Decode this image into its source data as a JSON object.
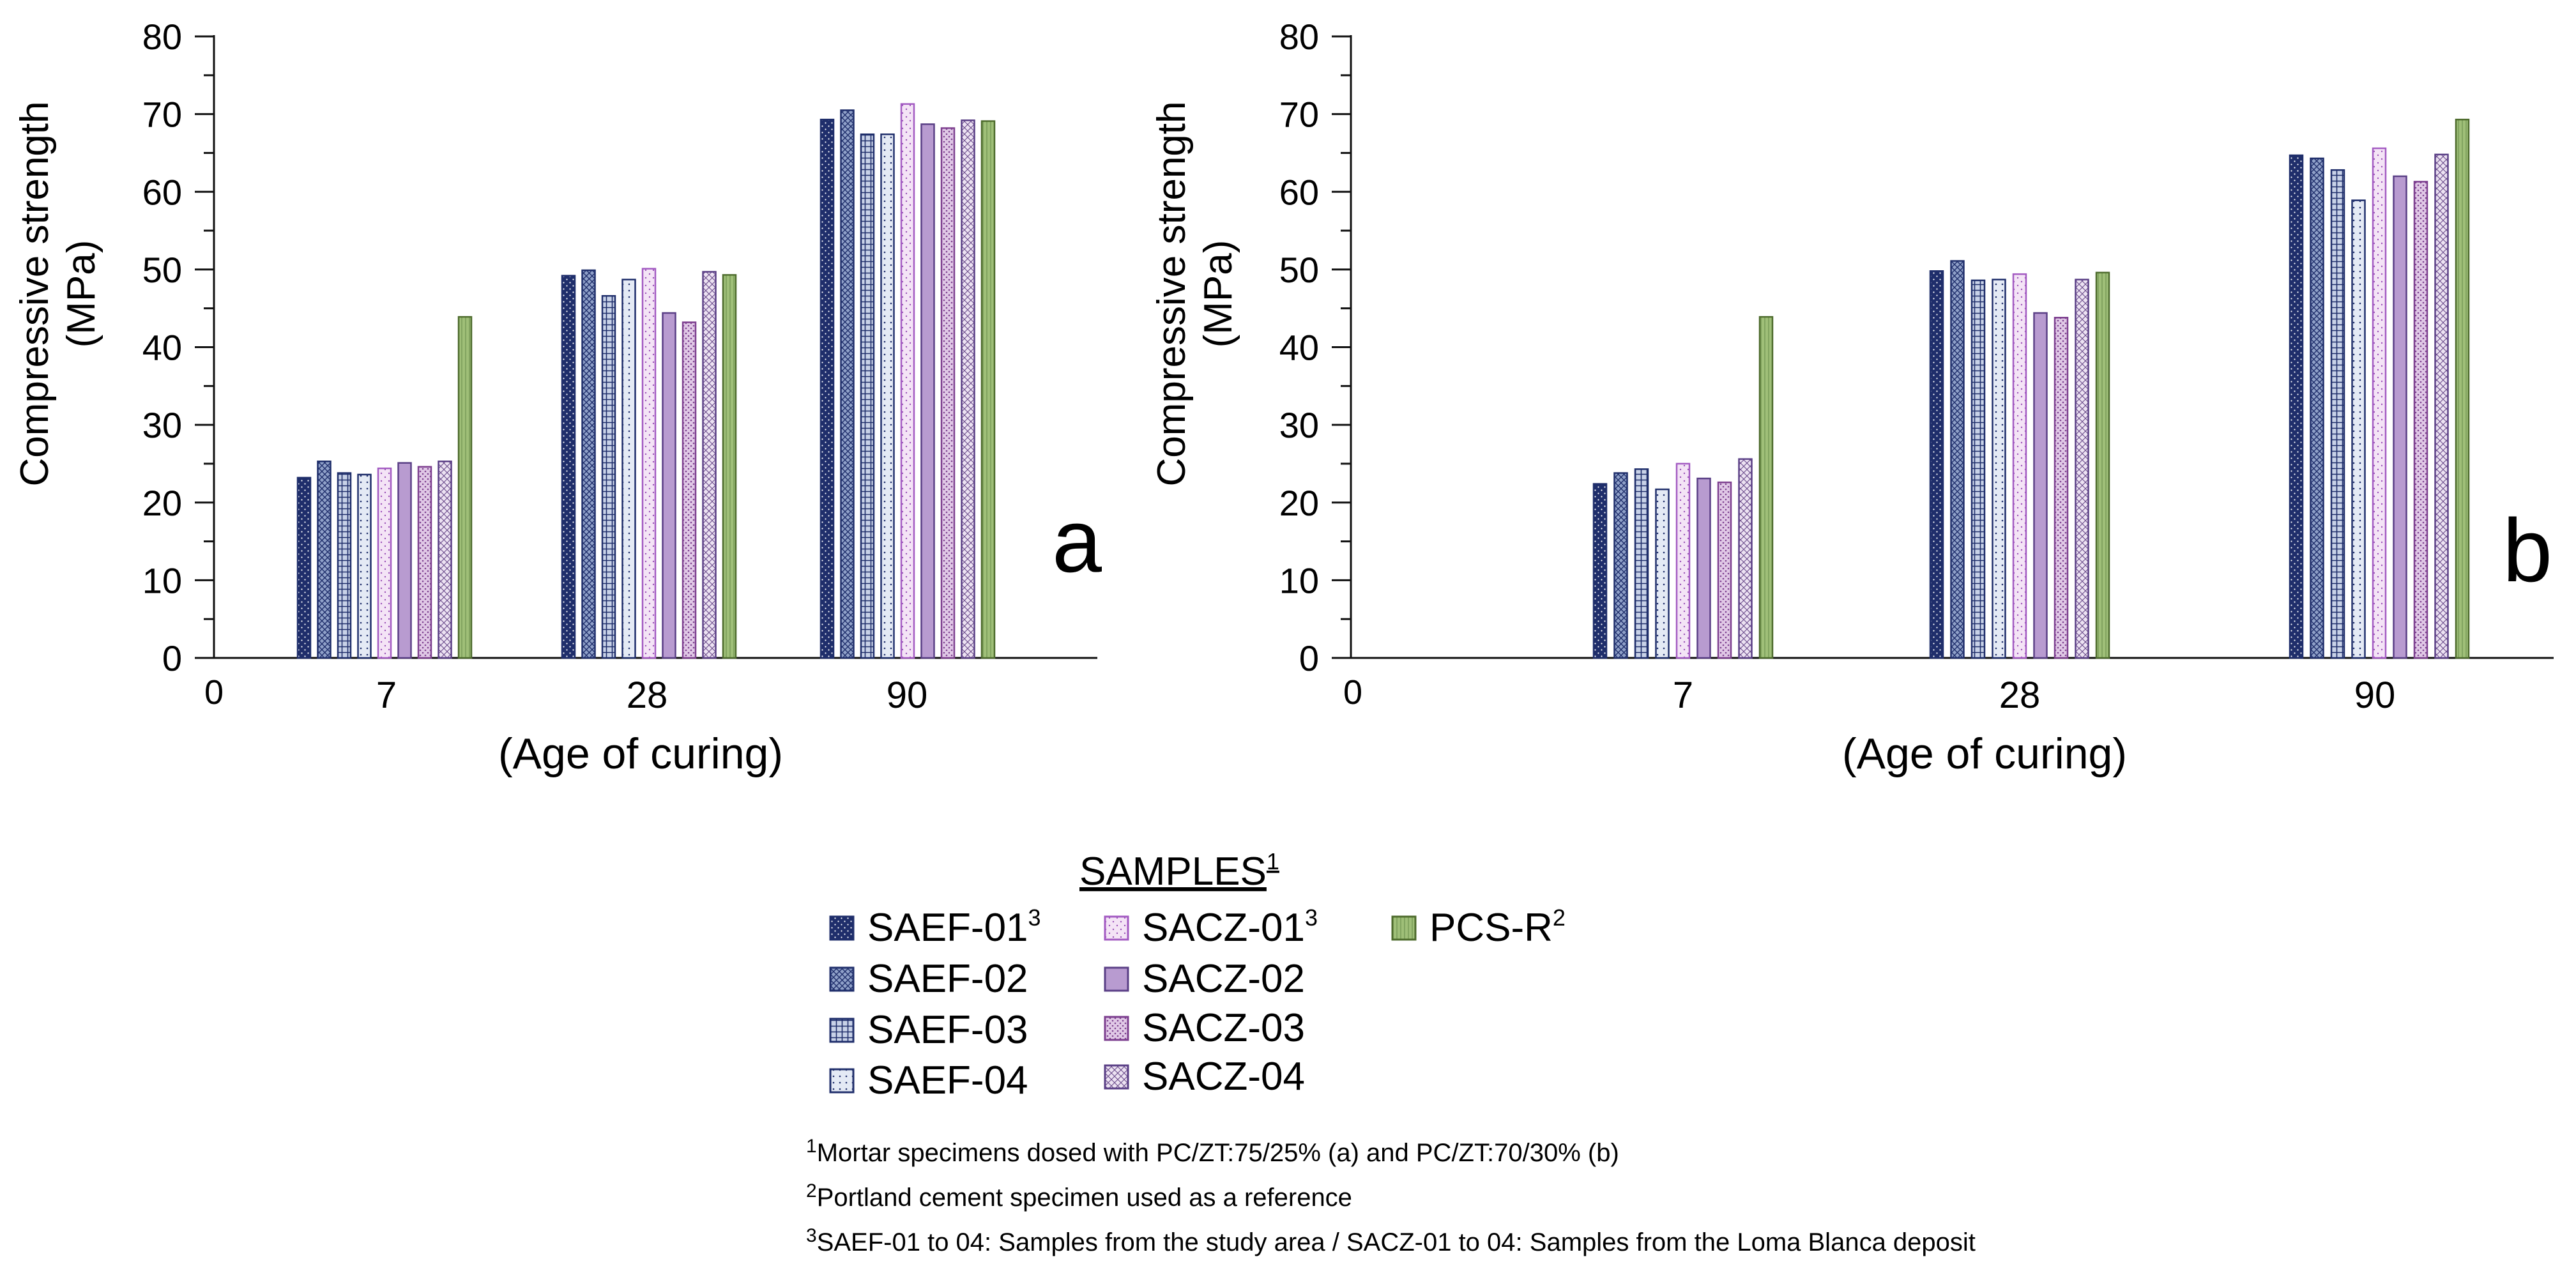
{
  "chart_data": [
    {
      "type": "bar",
      "panel_label": "a",
      "categories": [
        "7",
        "28",
        "90"
      ],
      "zero_tick": "0",
      "ylabel_line1": "Compressive strength",
      "ylabel_line2": "(MPa)",
      "xlabel": "(Age of curing)",
      "ylim": [
        0,
        80
      ],
      "yticks": [
        "0",
        "10",
        "20",
        "30",
        "40",
        "50",
        "60",
        "70",
        "80"
      ],
      "series": [
        {
          "name": "SAEF-01",
          "values": [
            23.2,
            49.2,
            69.3
          ]
        },
        {
          "name": "SAEF-02",
          "values": [
            25.3,
            49.9,
            70.5
          ]
        },
        {
          "name": "SAEF-03",
          "values": [
            23.8,
            46.6,
            67.4
          ]
        },
        {
          "name": "SAEF-04",
          "values": [
            23.6,
            48.7,
            67.4
          ]
        },
        {
          "name": "SACZ-01",
          "values": [
            24.4,
            50.1,
            71.3
          ]
        },
        {
          "name": "SACZ-02",
          "values": [
            25.1,
            44.4,
            68.7
          ]
        },
        {
          "name": "SACZ-03",
          "values": [
            24.6,
            43.2,
            68.2
          ]
        },
        {
          "name": "SACZ-04",
          "values": [
            25.3,
            49.7,
            69.2
          ]
        },
        {
          "name": "PCS-R",
          "values": [
            43.9,
            49.3,
            69.1
          ]
        }
      ]
    },
    {
      "type": "bar",
      "panel_label": "b",
      "categories": [
        "7",
        "28",
        "90"
      ],
      "zero_tick": "0",
      "ylabel_line1": "Compressive strength",
      "ylabel_line2": "(MPa)",
      "xlabel": "(Age of curing)",
      "ylim": [
        0,
        80
      ],
      "yticks": [
        "0",
        "10",
        "20",
        "30",
        "40",
        "50",
        "60",
        "70",
        "80"
      ],
      "series": [
        {
          "name": "SAEF-01",
          "values": [
            22.4,
            49.8,
            64.7
          ]
        },
        {
          "name": "SAEF-02",
          "values": [
            23.8,
            51.1,
            64.3
          ]
        },
        {
          "name": "SAEF-03",
          "values": [
            24.3,
            48.6,
            62.8
          ]
        },
        {
          "name": "SAEF-04",
          "values": [
            21.7,
            48.7,
            58.9
          ]
        },
        {
          "name": "SACZ-01",
          "values": [
            25.0,
            49.4,
            65.6
          ]
        },
        {
          "name": "SACZ-02",
          "values": [
            23.1,
            44.4,
            62.0
          ]
        },
        {
          "name": "SACZ-03",
          "values": [
            22.6,
            43.8,
            61.3
          ]
        },
        {
          "name": "SACZ-04",
          "values": [
            25.6,
            48.7,
            64.8
          ]
        },
        {
          "name": "PCS-R",
          "values": [
            43.9,
            49.6,
            69.3
          ]
        }
      ]
    }
  ],
  "legend": {
    "title": "SAMPLES",
    "title_sup": "1",
    "items": [
      {
        "label": "SAEF-01",
        "sup": "3"
      },
      {
        "label": "SAEF-02",
        "sup": ""
      },
      {
        "label": "SAEF-03",
        "sup": ""
      },
      {
        "label": "SAEF-04",
        "sup": ""
      },
      {
        "label": "SACZ-01",
        "sup": "3"
      },
      {
        "label": "SACZ-02",
        "sup": ""
      },
      {
        "label": "SACZ-03",
        "sup": ""
      },
      {
        "label": "SACZ-04",
        "sup": ""
      },
      {
        "label": "PCS-R",
        "sup": "2"
      }
    ]
  },
  "footnotes": [
    {
      "sup": "1",
      "text": "Mortar specimens dosed with PC/ZT:75/25% (a) and PC/ZT:70/30% (b)"
    },
    {
      "sup": "2",
      "text": "Portland cement specimen used as a reference"
    },
    {
      "sup": "3",
      "text": "SAEF-01 to 04: Samples from the study area / SACZ-01 to 04: Samples from the Loma Blanca deposit"
    }
  ],
  "colors": {
    "navy": "#1f2e6b",
    "saef01": "#1f2e6b",
    "saef02": "#8fa0c8",
    "saef03": "#c8d2e8",
    "saef04": "#e4eaf5",
    "sacz01": "#f4e4f6",
    "sacz02": "#b89bd0",
    "sacz03": "#e0c8e6",
    "sacz04": "#ece2f2",
    "pcsr": "#9fbf78"
  }
}
